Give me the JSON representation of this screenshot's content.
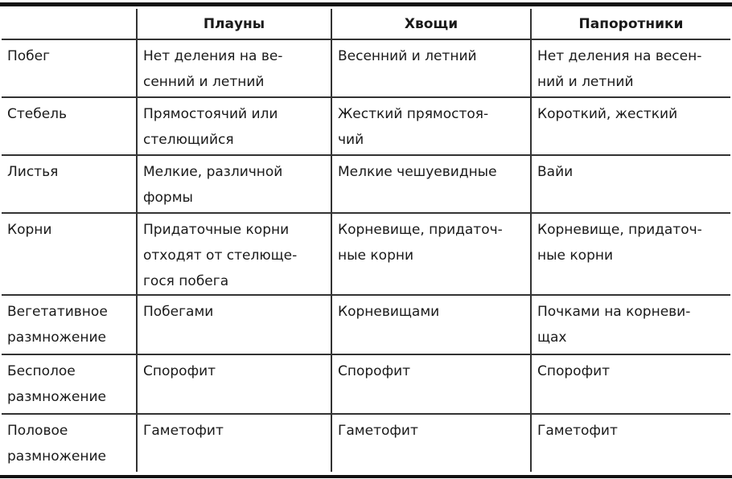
{
  "table": {
    "headers": [
      "",
      "Плауны",
      "Хвощи",
      "Папоротники"
    ],
    "rows": [
      [
        "Побег",
        "Нет деления на ве-\nсенний и летний",
        "Весенний и летний",
        "Нет деления на весен-\nний и летний"
      ],
      [
        "Стебель",
        "Прямостоячий или\nстелющийся",
        "Жесткий прямостоя-\nчий",
        "Короткий, жесткий"
      ],
      [
        "Листья",
        "Мелкие, различной\nформы",
        "Мелкие чешуевидные",
        "Вайи"
      ],
      [
        "Корни",
        "Придаточные корни\nотходят от стелюще-\nгося побега",
        "Корневище, придаточ-\nные корни",
        "Корневище, придаточ-\nные корни"
      ],
      [
        "Вегетативное\nразмножение",
        "Побегами",
        "Корневищами",
        "Почками на корневи-\nщах"
      ],
      [
        "Бесполое\nразмножение",
        "Спорофит",
        "Спорофит",
        "Спорофит"
      ],
      [
        "Половое\nразмножение",
        "Гаметофит",
        "Гаметофит",
        "Гаметофит"
      ]
    ]
  }
}
